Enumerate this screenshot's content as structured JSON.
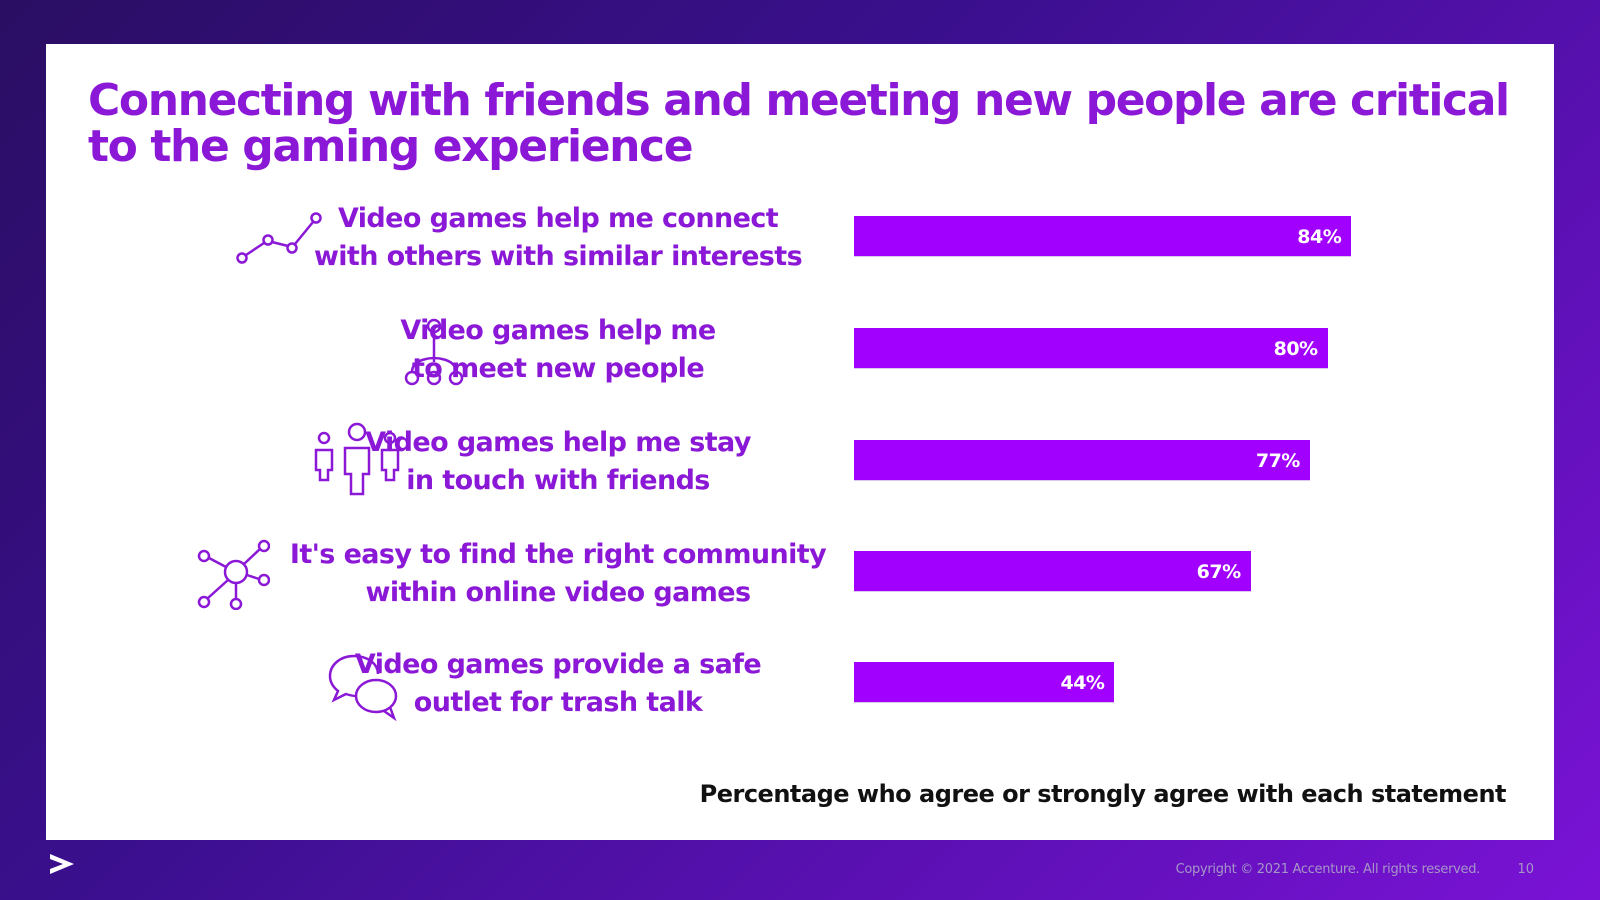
{
  "chart_data": {
    "type": "bar",
    "title": "Connecting with friends and meeting new people are critical to the gaming experience",
    "categories": [
      "Video games help me connect with others with similar interests",
      "Video games help me to meet new people",
      "Video games help me stay in touch with friends",
      "It's easy to find the right community within online video games",
      "Video games provide a safe outlet for trash talk"
    ],
    "category_lines": [
      [
        "Video games help me connect",
        "with others with similar interests"
      ],
      [
        "Video games help me",
        "to meet new people"
      ],
      [
        "Video games help me stay",
        "in touch with friends"
      ],
      [
        "It's easy to find the right community",
        "within online video games"
      ],
      [
        "Video games provide a safe",
        "outlet for trash talk"
      ]
    ],
    "values": [
      84,
      80,
      77,
      67,
      44
    ],
    "value_labels": [
      "84%",
      "80%",
      "77%",
      "67%",
      "44%"
    ],
    "icons": [
      "trend-line-icon",
      "hierarchy-icon",
      "people-group-icon",
      "network-hub-icon",
      "chat-bubbles-icon"
    ],
    "note": "Percentage who agree or strongly agree with each statement",
    "orientation": "horizontal",
    "grid": false,
    "xlim": [
      0,
      100
    ]
  },
  "footer": {
    "copyright": "Copyright © 2021 Accenture. All rights reserved.",
    "page_number": "10",
    "logo_icon": "accenture-greater-than-icon"
  },
  "colors": {
    "accent": "#a100ff",
    "title": "#8a18d6",
    "background_dark": "#2a0e63",
    "background_bright": "#7a12d6"
  }
}
